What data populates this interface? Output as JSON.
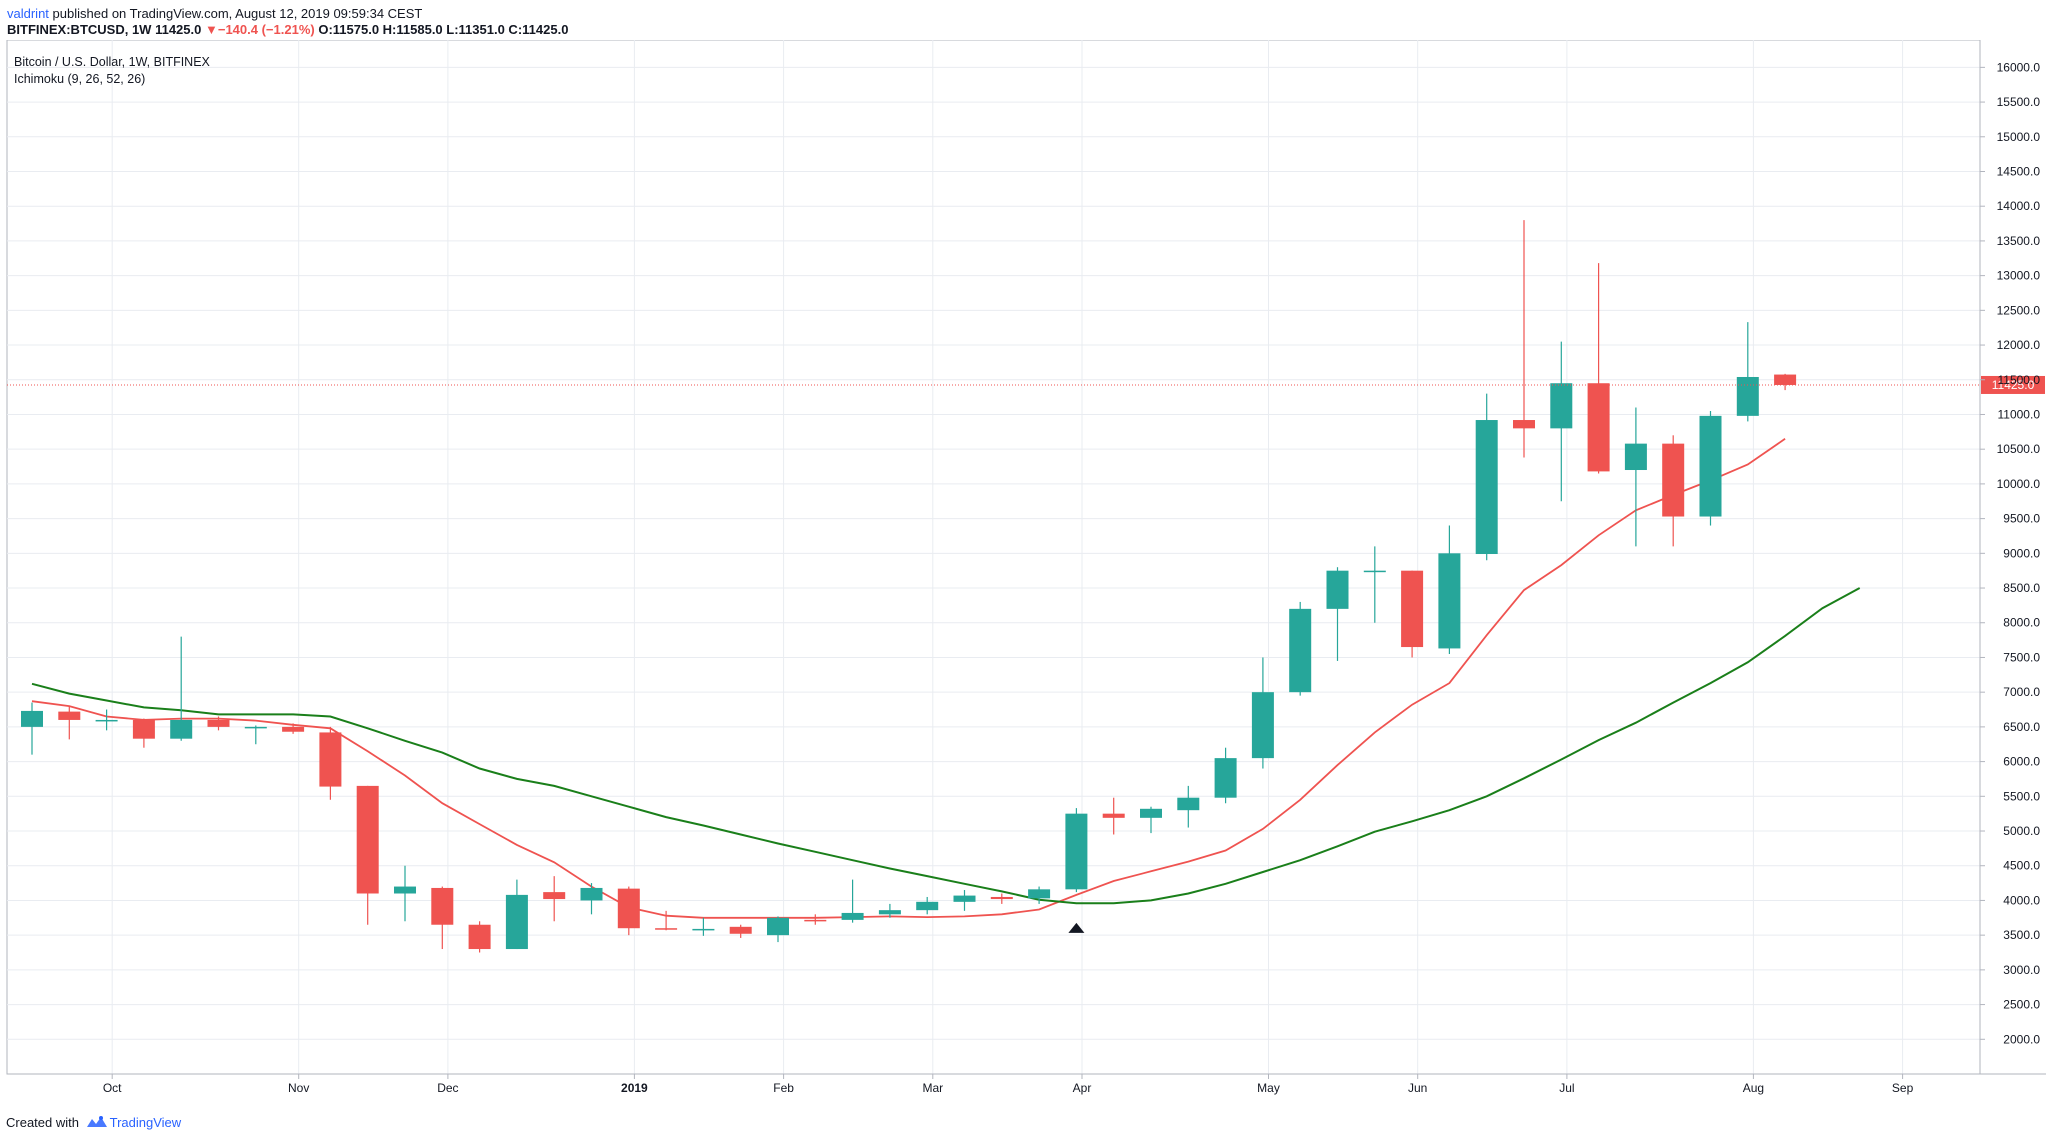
{
  "header": {
    "author": "valdrint",
    "published_text": "published on TradingView.com, August 12, 2019 09:59:34 CEST",
    "symbol_line": "BITFINEX:BTCUSD, 1W",
    "last_value": "11425.0",
    "change_arrow": "▼",
    "change_text": "−140.4 (−1.21%)",
    "ohlc": "O:11575.0 H:11585.0 L:11351.0 C:11425.0"
  },
  "legend": {
    "title": "Bitcoin / U.S. Dollar, 1W, BITFINEX",
    "indicator": "Ichimoku (9, 26, 52, 26)"
  },
  "footer": {
    "created_with": "Created with",
    "brand": "TradingView",
    "brand_icon": "tradingview-logo-icon"
  },
  "colors": {
    "up": "#26a69a",
    "down": "#ef5350",
    "conversion_line": "#ef5350",
    "base_line": "#1a7f1a",
    "grid": "#e9ecf1",
    "last_price_line": "#ef5350",
    "marker": "#131722"
  },
  "chart_data": {
    "type": "candlestick",
    "title": "Bitcoin / U.S. Dollar, 1W, BITFINEX",
    "ylim": [
      1500,
      16250
    ],
    "y_ticks": [
      "2000.0",
      "2500.0",
      "3000.0",
      "3500.0",
      "4000.0",
      "4500.0",
      "5000.0",
      "5500.0",
      "6000.0",
      "6500.0",
      "7000.0",
      "7500.0",
      "8000.0",
      "8500.0",
      "9000.0",
      "9500.0",
      "10000.0",
      "10500.0",
      "11000.0",
      "11500.0",
      "12000.0",
      "12500.0",
      "13000.0",
      "13500.0",
      "14000.0",
      "14500.0",
      "15000.0",
      "15500.0",
      "16000.0"
    ],
    "x_ticks": [
      {
        "label": "Oct",
        "week": 2.15
      },
      {
        "label": "Nov",
        "week": 7.15
      },
      {
        "label": "Dec",
        "week": 11.15
      },
      {
        "label": "2019",
        "week": 16.15,
        "bold": true
      },
      {
        "label": "Feb",
        "week": 20.15
      },
      {
        "label": "Mar",
        "week": 24.15
      },
      {
        "label": "Apr",
        "week": 28.15
      },
      {
        "label": "May",
        "week": 33.15
      },
      {
        "label": "Jun",
        "week": 37.15
      },
      {
        "label": "Jul",
        "week": 41.15
      },
      {
        "label": "Aug",
        "week": 46.15
      },
      {
        "label": "Sep",
        "week": 50.15
      }
    ],
    "last_price": 11425.0,
    "last_price_label": "11425.0",
    "candles": [
      {
        "o": 6500,
        "h": 6850,
        "l": 6100,
        "c": 6730
      },
      {
        "o": 6720,
        "h": 6800,
        "l": 6320,
        "c": 6600
      },
      {
        "o": 6600,
        "h": 6750,
        "l": 6450,
        "c": 6600
      },
      {
        "o": 6600,
        "h": 6620,
        "l": 6200,
        "c": 6330
      },
      {
        "o": 6330,
        "h": 7800,
        "l": 6300,
        "c": 6600
      },
      {
        "o": 6600,
        "h": 6650,
        "l": 6450,
        "c": 6500
      },
      {
        "o": 6500,
        "h": 6520,
        "l": 6250,
        "c": 6500
      },
      {
        "o": 6500,
        "h": 6550,
        "l": 6400,
        "c": 6430
      },
      {
        "o": 6420,
        "h": 6500,
        "l": 5450,
        "c": 5640
      },
      {
        "o": 5650,
        "h": 5650,
        "l": 3650,
        "c": 4100
      },
      {
        "o": 4100,
        "h": 4500,
        "l": 3700,
        "c": 4200
      },
      {
        "o": 4180,
        "h": 4200,
        "l": 3300,
        "c": 3650
      },
      {
        "o": 3650,
        "h": 3700,
        "l": 3250,
        "c": 3300
      },
      {
        "o": 3300,
        "h": 4300,
        "l": 3300,
        "c": 4080
      },
      {
        "o": 4120,
        "h": 4350,
        "l": 3700,
        "c": 4020
      },
      {
        "o": 4000,
        "h": 4250,
        "l": 3800,
        "c": 4180
      },
      {
        "o": 4170,
        "h": 4200,
        "l": 3500,
        "c": 3600
      },
      {
        "o": 3600,
        "h": 3850,
        "l": 3570,
        "c": 3590
      },
      {
        "o": 3580,
        "h": 3750,
        "l": 3490,
        "c": 3590
      },
      {
        "o": 3620,
        "h": 3650,
        "l": 3460,
        "c": 3520
      },
      {
        "o": 3500,
        "h": 3770,
        "l": 3400,
        "c": 3750
      },
      {
        "o": 3720,
        "h": 3800,
        "l": 3650,
        "c": 3700
      },
      {
        "o": 3720,
        "h": 4300,
        "l": 3680,
        "c": 3820
      },
      {
        "o": 3800,
        "h": 3950,
        "l": 3750,
        "c": 3860
      },
      {
        "o": 3860,
        "h": 4050,
        "l": 3800,
        "c": 3980
      },
      {
        "o": 3980,
        "h": 4150,
        "l": 3850,
        "c": 4070
      },
      {
        "o": 4050,
        "h": 4100,
        "l": 3950,
        "c": 4020
      },
      {
        "o": 4030,
        "h": 4200,
        "l": 3950,
        "c": 4160
      },
      {
        "o": 4160,
        "h": 5330,
        "l": 4120,
        "c": 5250
      },
      {
        "o": 5250,
        "h": 5480,
        "l": 4950,
        "c": 5190
      },
      {
        "o": 5190,
        "h": 5350,
        "l": 4970,
        "c": 5320
      },
      {
        "o": 5300,
        "h": 5650,
        "l": 5050,
        "c": 5480
      },
      {
        "o": 5480,
        "h": 6200,
        "l": 5400,
        "c": 6050
      },
      {
        "o": 6050,
        "h": 7500,
        "l": 5900,
        "c": 7000
      },
      {
        "o": 7000,
        "h": 8300,
        "l": 6950,
        "c": 8200
      },
      {
        "o": 8200,
        "h": 8800,
        "l": 7450,
        "c": 8750
      },
      {
        "o": 8750,
        "h": 9100,
        "l": 8000,
        "c": 8750
      },
      {
        "o": 8750,
        "h": 8750,
        "l": 7500,
        "c": 7650
      },
      {
        "o": 7630,
        "h": 9400,
        "l": 7550,
        "c": 9000
      },
      {
        "o": 8990,
        "h": 11300,
        "l": 8900,
        "c": 10920
      },
      {
        "o": 10920,
        "h": 13800,
        "l": 10380,
        "c": 10800
      },
      {
        "o": 10800,
        "h": 12050,
        "l": 9750,
        "c": 11450
      },
      {
        "o": 11450,
        "h": 13180,
        "l": 10150,
        "c": 10180
      },
      {
        "o": 10200,
        "h": 11100,
        "l": 9100,
        "c": 10580
      },
      {
        "o": 10580,
        "h": 10700,
        "l": 9100,
        "c": 9530
      },
      {
        "o": 9530,
        "h": 11050,
        "l": 9400,
        "c": 10980
      },
      {
        "o": 10980,
        "h": 12330,
        "l": 10900,
        "c": 11540
      },
      {
        "o": 11575,
        "h": 11585,
        "l": 11351,
        "c": 11425
      }
    ],
    "series": [
      {
        "name": "",
        "color": "#ef5350",
        "start_week": 0,
        "values": [
          6870,
          6800,
          6650,
          6600,
          6620,
          6620,
          6590,
          6530,
          6480,
          6150,
          5800,
          5400,
          5100,
          4800,
          4550,
          4200,
          3900,
          3780,
          3750,
          3750,
          3750,
          3750,
          3760,
          3770,
          3760,
          3770,
          3800,
          3870,
          4080,
          4280,
          4420,
          4560,
          4720,
          5030,
          5450,
          5950,
          6420,
          6820,
          7130,
          7820,
          8470,
          8830,
          9260,
          9620,
          9840,
          10050,
          10280,
          10650
        ]
      },
      {
        "name": "",
        "color": "#1a7f1a",
        "start_week": 0,
        "values": [
          7120,
          6980,
          6880,
          6780,
          6740,
          6680,
          6680,
          6680,
          6650,
          6480,
          6300,
          6130,
          5900,
          5750,
          5650,
          5500,
          5350,
          5200,
          5080,
          4950,
          4820,
          4700,
          4580,
          4460,
          4350,
          4240,
          4130,
          4010,
          3960,
          3960,
          4000,
          4100,
          4240,
          4410,
          4580,
          4780,
          4990,
          5140,
          5300,
          5500,
          5760,
          6030,
          6310,
          6560,
          6850,
          7130,
          7430,
          7810,
          8210,
          8500
        ]
      }
    ],
    "marker": {
      "type": "triangle-up",
      "week": 28,
      "price": 3620
    }
  }
}
